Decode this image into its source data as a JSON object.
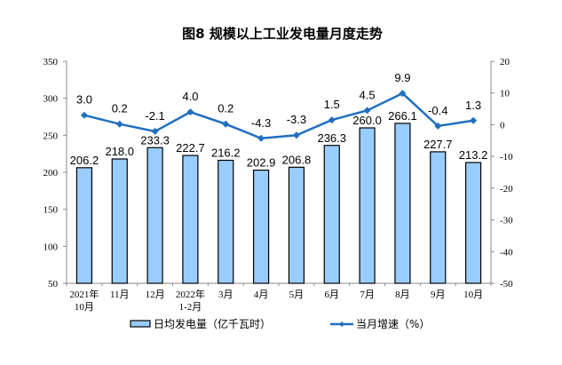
{
  "chart_data": {
    "type": "bar+line",
    "title": "图8  规模以上工业发电量月度走势",
    "categories": [
      [
        "2021年",
        "10月"
      ],
      [
        "11月"
      ],
      [
        "12月"
      ],
      [
        "2022年",
        "1-2月"
      ],
      [
        "3月"
      ],
      [
        "4月"
      ],
      [
        "5月"
      ],
      [
        "6月"
      ],
      [
        "7月"
      ],
      [
        "8月"
      ],
      [
        "9月"
      ],
      [
        "10月"
      ]
    ],
    "series": [
      {
        "name": "日均发电量（亿千瓦时）",
        "type": "bar",
        "axis": "left",
        "color": "#99CCFF",
        "values": [
          206.2,
          218.0,
          233.3,
          222.7,
          216.2,
          202.9,
          206.8,
          236.3,
          260.0,
          266.1,
          227.7,
          213.2
        ],
        "labels": [
          "206.2",
          "218.0",
          "233.3",
          "222.7",
          "216.2",
          "202.9",
          "206.8",
          "236.3",
          "260.0",
          "266.1",
          "227.7",
          "213.2"
        ]
      },
      {
        "name": "当月增速（%）",
        "type": "line",
        "axis": "right",
        "color": "#1F6FC0",
        "values": [
          3.0,
          0.2,
          -2.1,
          4.0,
          0.2,
          -4.3,
          -3.3,
          1.5,
          4.5,
          9.9,
          -0.4,
          1.3
        ],
        "labels": [
          "3.0",
          "0.2",
          "-2.1",
          "4.0",
          "0.2",
          "-4.3",
          "-3.3",
          "1.5",
          "4.5",
          "9.9",
          "-0.4",
          "1.3"
        ]
      }
    ],
    "y_left": {
      "range": [
        50,
        350
      ],
      "ticks": [
        "50",
        "100",
        "150",
        "200",
        "250",
        "300",
        "350"
      ]
    },
    "y_right": {
      "range": [
        -50,
        20
      ],
      "ticks": [
        "-50",
        "-40",
        "-30",
        "-20",
        "-10",
        "0",
        "10",
        "20"
      ]
    },
    "grid": false,
    "legend": "bottom"
  }
}
